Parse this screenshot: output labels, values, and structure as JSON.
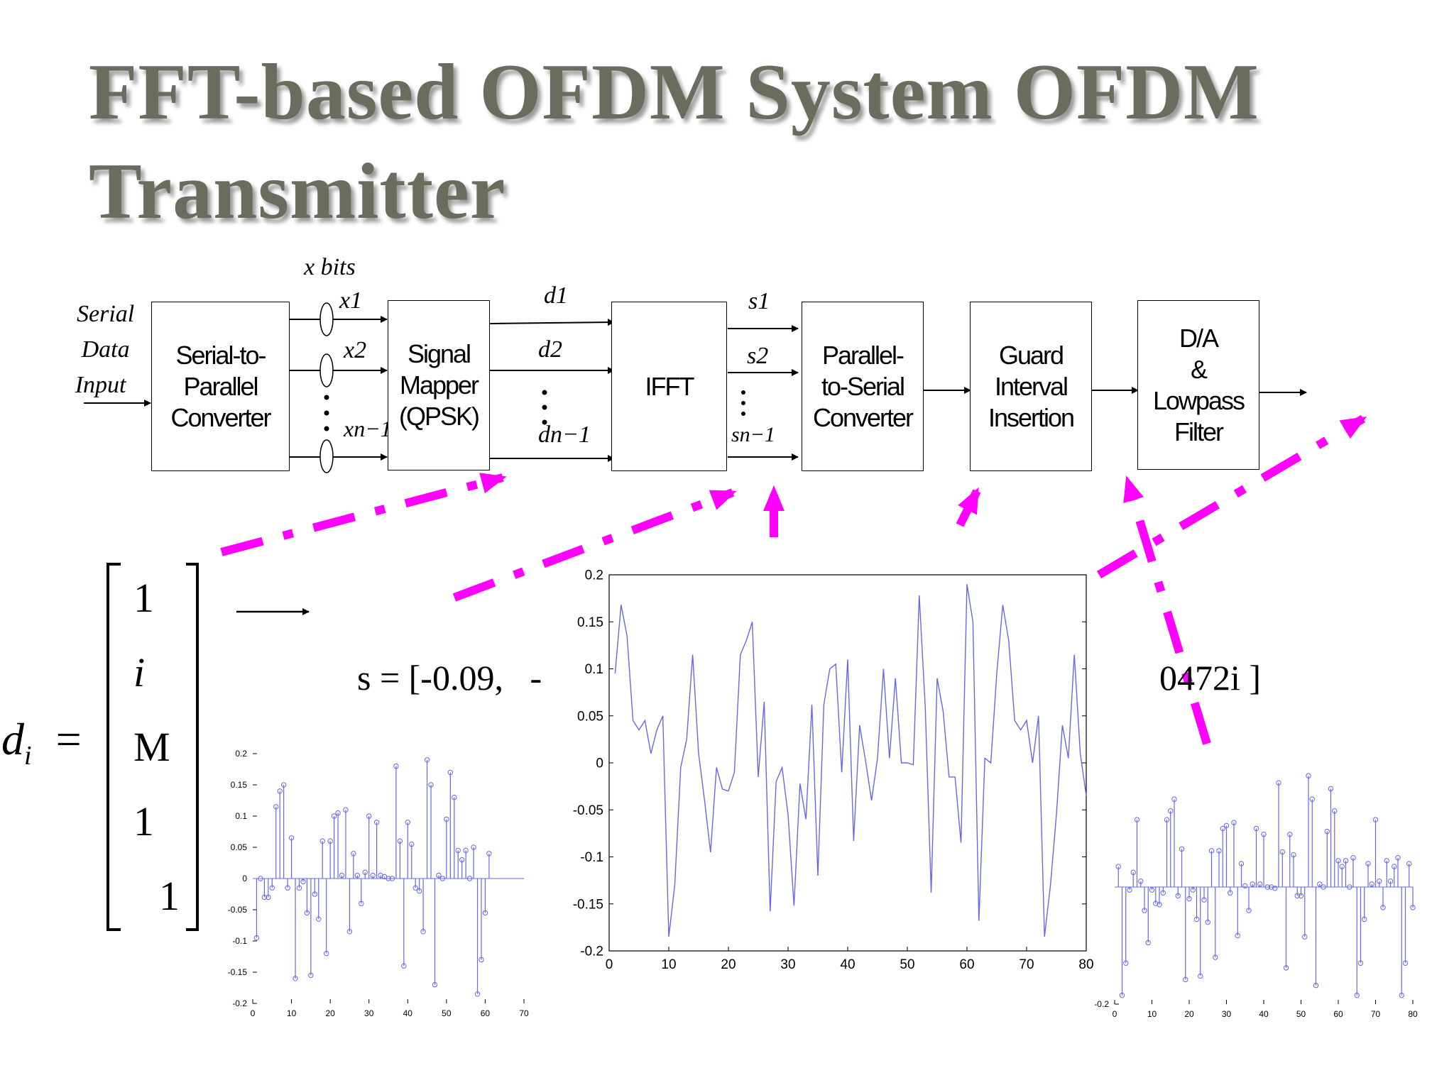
{
  "title": {
    "line1": "FFT-based OFDM System OFDM",
    "line2": "Transmitter"
  },
  "input_label": {
    "line1": "Serial",
    "line2": "Data",
    "line3": "Input"
  },
  "bits_label": "x bits",
  "blocks": {
    "s2p": "Serial-to-\nParallel\nConverter",
    "mapper": "Signal\nMapper\n(QPSK)",
    "ifft": "IFFT",
    "p2s": "Parallel-\nto-Serial\nConverter",
    "guard": "Guard\nInterval\nInsertion",
    "da": "D/A\n&\nLowpass\nFilter"
  },
  "signals": {
    "x": [
      "x1",
      "x2",
      "xn−1"
    ],
    "d": [
      "d1",
      "d2",
      "dn−1"
    ],
    "s": [
      "s1",
      "s2",
      "sn−1"
    ]
  },
  "equation": {
    "lhs": "d",
    "lhs_sub": "i",
    "equals": "=",
    "col": [
      "1",
      "i",
      "M",
      "1",
      "1"
    ],
    "s_expr": "s = [-0.09,   -",
    "s_tail": "0472i ]"
  },
  "colors": {
    "arrow": "#ff00ff",
    "plot": "#6666ee"
  },
  "chart_data": [
    {
      "type": "scatter",
      "style": "stem",
      "x": [
        1,
        2,
        3,
        4,
        5,
        6,
        7,
        8,
        9,
        10,
        11,
        12,
        13,
        14,
        15,
        16,
        17,
        18,
        19,
        20,
        21,
        22,
        23,
        24,
        25,
        26,
        27,
        28,
        29,
        30,
        31,
        32,
        33,
        34,
        35,
        36,
        37,
        38,
        39,
        40,
        41,
        42,
        43,
        44,
        45,
        46,
        47,
        48,
        49,
        50,
        51,
        52,
        53,
        54,
        55,
        56,
        57,
        58,
        59,
        60,
        61
      ],
      "values": [
        -0.095,
        0.0,
        -0.03,
        -0.03,
        -0.015,
        0.115,
        0.14,
        0.15,
        -0.015,
        0.065,
        -0.16,
        -0.015,
        -0.005,
        -0.055,
        -0.155,
        -0.025,
        -0.065,
        0.06,
        -0.12,
        0.06,
        0.1,
        0.105,
        0.005,
        0.11,
        -0.085,
        0.04,
        0.005,
        -0.04,
        0.01,
        0.1,
        0.005,
        0.09,
        0.005,
        0.003,
        0.0,
        0.0,
        0.18,
        0.06,
        -0.14,
        0.09,
        0.055,
        -0.015,
        -0.02,
        -0.085,
        0.19,
        0.15,
        -0.17,
        0.005,
        0.0,
        0.095,
        0.17,
        0.13,
        0.045,
        0.03,
        0.045,
        0.0,
        0.05,
        -0.185,
        -0.13,
        -0.055,
        0.04
      ],
      "xlim": [
        0,
        70
      ],
      "ylim": [
        -0.2,
        0.2
      ],
      "xticks": [
        "0",
        "10",
        "20",
        "30",
        "40",
        "50",
        "60",
        "70"
      ],
      "yticks": [
        "0.2",
        "0.15",
        "0.1",
        "0.05",
        "0",
        "-0.05",
        "-0.1",
        "-0.15",
        "-0.2"
      ]
    },
    {
      "type": "line",
      "x": [
        1,
        2,
        3,
        4,
        5,
        6,
        7,
        8,
        9,
        10,
        11,
        12,
        13,
        14,
        15,
        16,
        17,
        18,
        19,
        20,
        21,
        22,
        23,
        24,
        25,
        26,
        27,
        28,
        29,
        30,
        31,
        32,
        33,
        34,
        35,
        36,
        37,
        38,
        39,
        40,
        41,
        42,
        43,
        44,
        45,
        46,
        47,
        48,
        49,
        50,
        51,
        52,
        53,
        54,
        55,
        56,
        57,
        58,
        59,
        60,
        61,
        62,
        63,
        64,
        65,
        66,
        67,
        68,
        69,
        70,
        71,
        72,
        73,
        74,
        75,
        76,
        77,
        78,
        79,
        80
      ],
      "values": [
        0.095,
        0.168,
        0.135,
        0.045,
        0.035,
        0.045,
        0.01,
        0.035,
        0.05,
        -0.185,
        -0.13,
        -0.005,
        0.025,
        0.115,
        0.01,
        -0.04,
        -0.095,
        -0.005,
        -0.028,
        -0.03,
        -0.01,
        0.115,
        0.13,
        0.15,
        -0.015,
        0.065,
        -0.158,
        -0.02,
        -0.005,
        -0.055,
        -0.152,
        -0.022,
        -0.06,
        0.062,
        -0.12,
        0.062,
        0.1,
        0.105,
        -0.01,
        0.11,
        -0.083,
        0.04,
        0.002,
        -0.04,
        0.005,
        0.1,
        0.005,
        0.09,
        0.0,
        0.0,
        -0.002,
        0.178,
        0.06,
        -0.138,
        0.09,
        0.055,
        -0.015,
        -0.015,
        -0.085,
        0.19,
        0.15,
        -0.168,
        0.005,
        0.0,
        0.095,
        0.168,
        0.13,
        0.045,
        0.035,
        0.045,
        0.0,
        0.05,
        -0.185,
        -0.13,
        -0.055,
        0.04,
        0.005,
        0.115,
        0.01,
        -0.035
      ],
      "xlim": [
        0,
        80
      ],
      "ylim": [
        -0.2,
        0.2
      ],
      "xticks": [
        "0",
        "10",
        "20",
        "30",
        "40",
        "50",
        "60",
        "70",
        "80"
      ],
      "yticks": [
        "0.2",
        "0.15",
        "0.1",
        "0.05",
        "0",
        "-0.05",
        "-0.1",
        "-0.15",
        "-0.2"
      ]
    },
    {
      "type": "scatter",
      "style": "stem",
      "x": [
        1,
        2,
        3,
        4,
        5,
        6,
        7,
        8,
        9,
        10,
        11,
        12,
        13,
        14,
        15,
        16,
        17,
        18,
        19,
        20,
        21,
        22,
        23,
        24,
        25,
        26,
        27,
        28,
        29,
        30,
        31,
        32,
        33,
        34,
        35,
        36,
        37,
        38,
        39,
        40,
        41,
        42,
        43,
        44,
        45,
        46,
        47,
        48,
        49,
        50,
        51,
        52,
        53,
        54,
        55,
        56,
        57,
        58,
        59,
        60,
        61,
        62,
        63,
        64,
        65,
        66,
        67,
        68,
        69,
        70,
        71,
        72,
        73,
        74,
        75,
        76,
        77,
        78,
        79,
        80
      ],
      "values": [
        0.035,
        -0.185,
        -0.13,
        -0.005,
        0.025,
        0.115,
        0.01,
        -0.04,
        -0.095,
        -0.005,
        -0.028,
        -0.03,
        -0.01,
        0.115,
        0.13,
        0.15,
        -0.015,
        0.065,
        -0.158,
        -0.02,
        -0.005,
        -0.055,
        -0.152,
        -0.022,
        -0.06,
        0.062,
        -0.12,
        0.062,
        0.1,
        0.105,
        -0.01,
        0.11,
        -0.083,
        0.04,
        0.002,
        -0.04,
        0.005,
        0.1,
        0.005,
        0.09,
        0.0,
        0.0,
        -0.002,
        0.178,
        0.06,
        -0.138,
        0.09,
        0.055,
        -0.015,
        -0.015,
        -0.085,
        0.19,
        0.15,
        -0.168,
        0.005,
        0.0,
        0.095,
        0.168,
        0.13,
        0.045,
        0.035,
        0.045,
        0.0,
        0.05,
        -0.185,
        -0.13,
        -0.055,
        0.04,
        0.005,
        0.115,
        0.01,
        -0.035,
        0.045,
        0.01,
        0.035,
        0.05,
        -0.185,
        -0.13,
        0.04,
        -0.035
      ],
      "xlim": [
        0,
        80
      ],
      "ylim": [
        -0.2,
        0.2
      ],
      "xticks": [
        "0",
        "10",
        "20",
        "30",
        "40",
        "50",
        "60",
        "70",
        "80"
      ],
      "yticks": [
        "-0.2"
      ]
    }
  ]
}
